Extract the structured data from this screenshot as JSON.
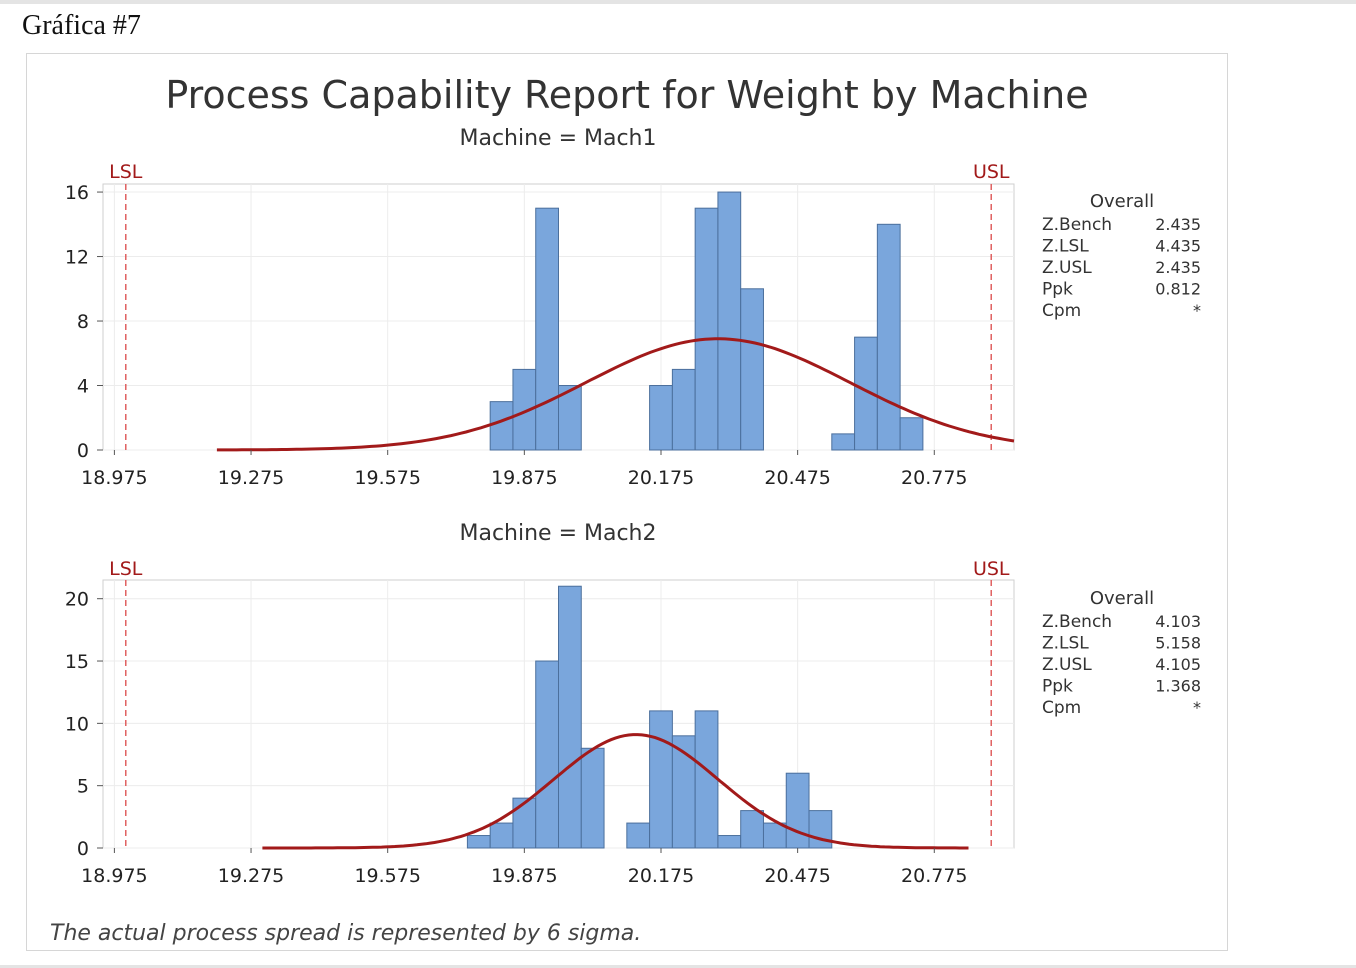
{
  "heading": "Gráfica #7",
  "colors": {
    "bar_fill": "#7aa6dc",
    "bar_stroke": "#4b6f9c",
    "curve": "#a21a1a",
    "spec_line": "#e06060",
    "grid": "#ececec"
  },
  "chart_data": {
    "type": "bar",
    "title": "Process Capability Report for Weight by Machine",
    "footnote": "The actual process spread is represented by 6 sigma.",
    "x_ticks": [
      "18.975",
      "19.275",
      "19.575",
      "19.875",
      "20.175",
      "20.475",
      "20.775"
    ],
    "xlim": [
      18.95,
      20.95
    ],
    "bin_width": 0.05,
    "lsl": 19.0,
    "usl": 20.9,
    "spec_labels": {
      "lsl": "LSL",
      "usl": "USL"
    },
    "panels": [
      {
        "subtitle": "Machine = Mach1",
        "y_ticks": [
          "0",
          "4",
          "8",
          "12",
          "16"
        ],
        "ylim": [
          0,
          16.5
        ],
        "bars": [
          {
            "x": 19.825,
            "count": 3
          },
          {
            "x": 19.875,
            "count": 5
          },
          {
            "x": 19.925,
            "count": 15
          },
          {
            "x": 19.975,
            "count": 4
          },
          {
            "x": 20.175,
            "count": 4
          },
          {
            "x": 20.225,
            "count": 5
          },
          {
            "x": 20.275,
            "count": 15
          },
          {
            "x": 20.325,
            "count": 16
          },
          {
            "x": 20.375,
            "count": 10
          },
          {
            "x": 20.575,
            "count": 1
          },
          {
            "x": 20.625,
            "count": 7
          },
          {
            "x": 20.675,
            "count": 14
          },
          {
            "x": 20.725,
            "count": 2
          }
        ],
        "curve": {
          "mean": 20.3,
          "sd": 0.29,
          "peak": 6.9,
          "x_from": 19.2,
          "x_to": 20.95
        },
        "stats": {
          "header": "Overall",
          "rows": [
            {
              "label": "Z.Bench",
              "value": "2.435"
            },
            {
              "label": "Z.LSL",
              "value": "4.435"
            },
            {
              "label": "Z.USL",
              "value": "2.435"
            },
            {
              "label": "Ppk",
              "value": "0.812"
            },
            {
              "label": "Cpm",
              "value": "*"
            }
          ]
        }
      },
      {
        "subtitle": "Machine = Mach2",
        "y_ticks": [
          "0",
          "5",
          "10",
          "15",
          "20"
        ],
        "ylim": [
          0,
          21.5
        ],
        "bars": [
          {
            "x": 19.775,
            "count": 1
          },
          {
            "x": 19.825,
            "count": 2
          },
          {
            "x": 19.875,
            "count": 4
          },
          {
            "x": 19.925,
            "count": 15
          },
          {
            "x": 19.975,
            "count": 21
          },
          {
            "x": 20.025,
            "count": 8
          },
          {
            "x": 20.125,
            "count": 2
          },
          {
            "x": 20.175,
            "count": 11
          },
          {
            "x": 20.225,
            "count": 9
          },
          {
            "x": 20.275,
            "count": 11
          },
          {
            "x": 20.325,
            "count": 1
          },
          {
            "x": 20.375,
            "count": 3
          },
          {
            "x": 20.425,
            "count": 2
          },
          {
            "x": 20.475,
            "count": 6
          },
          {
            "x": 20.525,
            "count": 3
          }
        ],
        "curve": {
          "mean": 20.12,
          "sd": 0.18,
          "peak": 9.1,
          "x_from": 19.3,
          "x_to": 20.85
        },
        "stats": {
          "header": "Overall",
          "rows": [
            {
              "label": "Z.Bench",
              "value": "4.103"
            },
            {
              "label": "Z.LSL",
              "value": "5.158"
            },
            {
              "label": "Z.USL",
              "value": "4.105"
            },
            {
              "label": "Ppk",
              "value": "1.368"
            },
            {
              "label": "Cpm",
              "value": "*"
            }
          ]
        }
      }
    ]
  }
}
